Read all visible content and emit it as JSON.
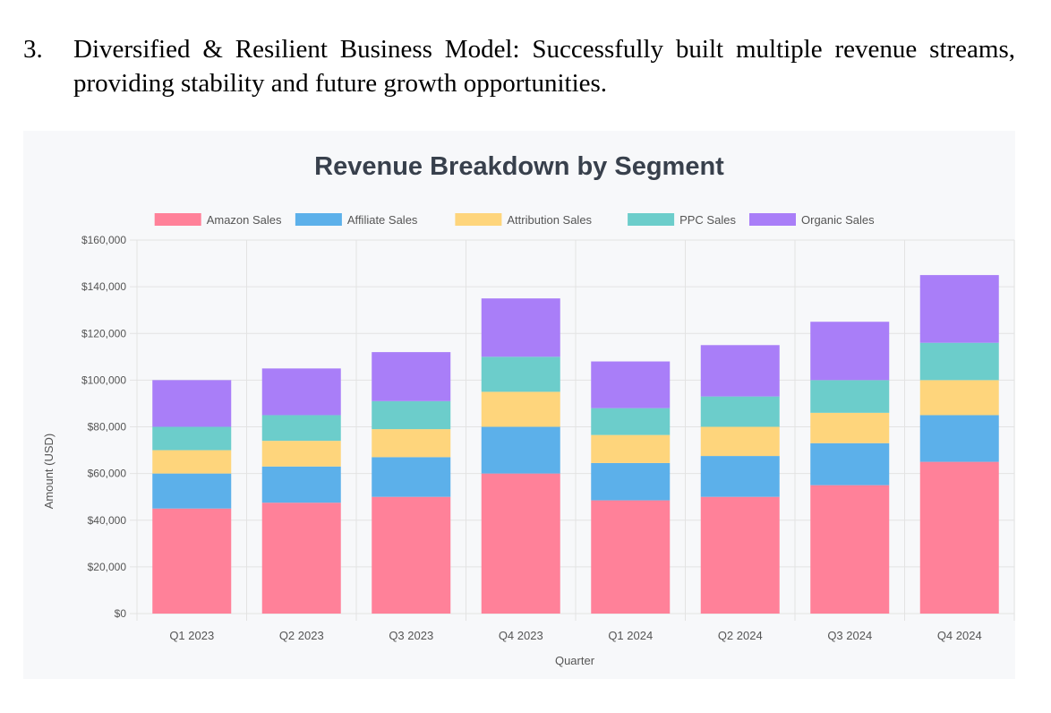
{
  "document": {
    "item_number": "3.",
    "item_text": "Diversified & Resilient Business Model: Successfully built multiple revenue streams, providing stability and future growth opportunities."
  },
  "chart_data": {
    "type": "bar",
    "stacked": true,
    "title": "Revenue Breakdown by Segment",
    "xlabel": "Quarter",
    "ylabel": "Amount (USD)",
    "ylim": [
      0,
      160000
    ],
    "yticks": [
      0,
      20000,
      40000,
      60000,
      80000,
      100000,
      120000,
      140000,
      160000
    ],
    "ytick_labels": [
      "$0",
      "$20,000",
      "$40,000",
      "$60,000",
      "$80,000",
      "$100,000",
      "$120,000",
      "$140,000",
      "$160,000"
    ],
    "categories": [
      "Q1 2023",
      "Q2 2023",
      "Q3 2023",
      "Q4 2023",
      "Q1 2024",
      "Q2 2024",
      "Q3 2024",
      "Q4 2024"
    ],
    "legend_position": "top",
    "grid": true,
    "series": [
      {
        "name": "Amazon Sales",
        "color": "#ff8199",
        "values": [
          45000,
          47500,
          50000,
          60000,
          48500,
          50000,
          55000,
          65000
        ]
      },
      {
        "name": "Affiliate Sales",
        "color": "#5cb0ea",
        "values": [
          15000,
          15500,
          17000,
          20000,
          16000,
          17500,
          18000,
          20000
        ]
      },
      {
        "name": "Attribution Sales",
        "color": "#fed57c",
        "values": [
          10000,
          11000,
          12000,
          15000,
          12000,
          12500,
          13000,
          15000
        ]
      },
      {
        "name": "PPC Sales",
        "color": "#6ccdcb",
        "values": [
          10000,
          11000,
          12000,
          15000,
          11500,
          13000,
          14000,
          16000
        ]
      },
      {
        "name": "Organic Sales",
        "color": "#a97ef8",
        "values": [
          20000,
          20000,
          21000,
          25000,
          20000,
          22000,
          25000,
          29000
        ]
      }
    ]
  }
}
